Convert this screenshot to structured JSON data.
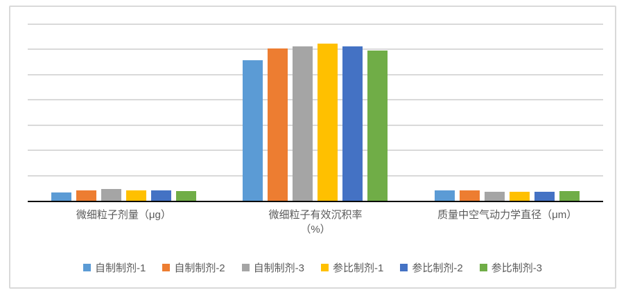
{
  "chart": {
    "background": "#FFFFFF",
    "frame_border_color": "#D9D9D9",
    "gridline_color": "#D9D9D9",
    "axis_color": "#000000",
    "text_color": "#595959"
  },
  "chart_data": {
    "type": "bar",
    "title": "",
    "xlabel": "",
    "ylabel": "",
    "categories": [
      "微细粒子剂量（μg）",
      "微细粒子有效沉积率\n（%）",
      "质量中空气动力学直径（μm）"
    ],
    "series": [
      {
        "name": "自制制剂-1",
        "color": "#5B9BD5",
        "values": [
          3.3,
          55.8,
          4.2
        ]
      },
      {
        "name": "自制制剂-2",
        "color": "#ED7D31",
        "values": [
          4.1,
          60.3,
          4.0
        ]
      },
      {
        "name": "自制制剂-3",
        "color": "#A5A5A5",
        "values": [
          4.8,
          61.2,
          3.5
        ]
      },
      {
        "name": "参比制剂-1",
        "color": "#FFC000",
        "values": [
          4.1,
          62.2,
          3.5
        ]
      },
      {
        "name": "参比制剂-2",
        "color": "#4472C4",
        "values": [
          4.1,
          61.2,
          3.5
        ]
      },
      {
        "name": "参比制剂-3",
        "color": "#70AD47",
        "values": [
          3.8,
          59.5,
          3.8
        ]
      }
    ],
    "ylim": [
      0,
      70
    ],
    "gridline_interval": 10,
    "y_axis_labels_visible": false,
    "grid": true,
    "legend_position": "bottom"
  }
}
